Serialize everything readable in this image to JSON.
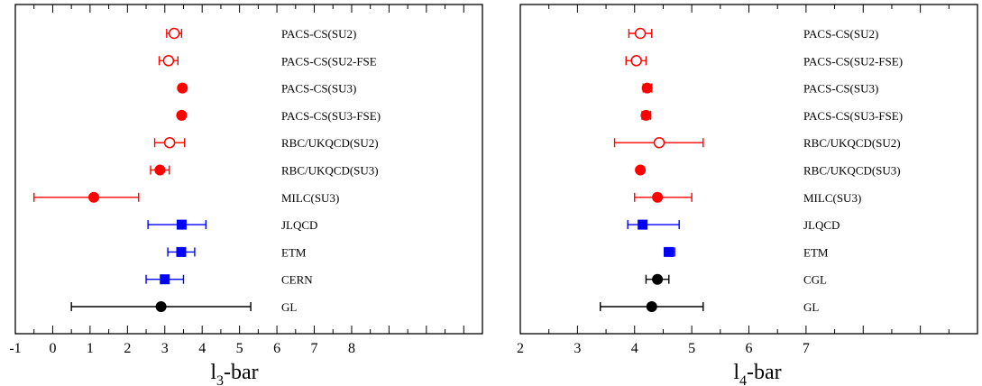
{
  "colors": {
    "red": "#ff0000",
    "blue": "#0000ff",
    "black": "#000000"
  },
  "chart_data": [
    {
      "type": "scatter",
      "chart_style": "horizontal error-bar forest plot",
      "xlabel_main": "l",
      "xlabel_sub": "3",
      "xlabel_rest": "-bar",
      "xlim": [
        -1,
        11.5
      ],
      "x_ticks": [
        -1,
        0,
        1,
        2,
        3,
        4,
        5,
        6,
        7,
        8
      ],
      "x_tick_labels": [
        "-1",
        "0",
        "1",
        "2",
        "3",
        "4",
        "5",
        "6",
        "7",
        "8"
      ],
      "grid": false,
      "rows": [
        {
          "label": "PACS-CS(SU2)",
          "value": 3.25,
          "err_low": 3.05,
          "err_high": 3.45,
          "color": "#ff0000",
          "marker": "circle-open"
        },
        {
          "label": "PACS-CS(SU2-FSE",
          "value": 3.1,
          "err_low": 2.85,
          "err_high": 3.35,
          "color": "#ff0000",
          "marker": "circle-open"
        },
        {
          "label": "PACS-CS(SU3)",
          "value": 3.47,
          "err_low": 3.4,
          "err_high": 3.55,
          "color": "#ff0000",
          "marker": "circle-filled"
        },
        {
          "label": "PACS-CS(SU3-FSE)",
          "value": 3.45,
          "err_low": 3.38,
          "err_high": 3.53,
          "color": "#ff0000",
          "marker": "circle-filled"
        },
        {
          "label": "RBC/UKQCD(SU2)",
          "value": 3.13,
          "err_low": 2.73,
          "err_high": 3.53,
          "color": "#ff0000",
          "marker": "circle-open"
        },
        {
          "label": "RBC/UKQCD(SU3)",
          "value": 2.87,
          "err_low": 2.62,
          "err_high": 3.12,
          "color": "#ff0000",
          "marker": "circle-filled"
        },
        {
          "label": "MILC(SU3)",
          "value": 1.1,
          "err_low": -0.5,
          "err_high": 2.3,
          "color": "#ff0000",
          "marker": "circle-filled"
        },
        {
          "label": "JLQCD",
          "value": 3.45,
          "err_low": 2.55,
          "err_high": 4.1,
          "color": "#0000ff",
          "marker": "square-filled"
        },
        {
          "label": "ETM",
          "value": 3.44,
          "err_low": 3.08,
          "err_high": 3.8,
          "color": "#0000ff",
          "marker": "square-filled"
        },
        {
          "label": "CERN",
          "value": 3.0,
          "err_low": 2.5,
          "err_high": 3.5,
          "color": "#0000ff",
          "marker": "square-filled"
        },
        {
          "label": "GL",
          "value": 2.9,
          "err_low": 0.5,
          "err_high": 5.3,
          "color": "#000000",
          "marker": "circle-filled"
        }
      ]
    },
    {
      "type": "scatter",
      "chart_style": "horizontal error-bar forest plot",
      "xlabel_main": "l",
      "xlabel_sub": "4",
      "xlabel_rest": "-bar",
      "xlim": [
        2,
        10
      ],
      "x_ticks": [
        2,
        3,
        4,
        5,
        6,
        7
      ],
      "x_tick_labels": [
        "2",
        "3",
        "4",
        "5",
        "6",
        "7"
      ],
      "grid": false,
      "rows": [
        {
          "label": "PACS-CS(SU2)",
          "value": 4.1,
          "err_low": 3.9,
          "err_high": 4.3,
          "color": "#ff0000",
          "marker": "circle-open"
        },
        {
          "label": "PACS-CS(SU2-FSE)",
          "value": 4.03,
          "err_low": 3.85,
          "err_high": 4.2,
          "color": "#ff0000",
          "marker": "circle-open"
        },
        {
          "label": "PACS-CS(SU3)",
          "value": 4.22,
          "err_low": 4.15,
          "err_high": 4.3,
          "color": "#ff0000",
          "marker": "circle-filled"
        },
        {
          "label": "PACS-CS(SU3-FSE)",
          "value": 4.2,
          "err_low": 4.13,
          "err_high": 4.28,
          "color": "#ff0000",
          "marker": "circle-filled"
        },
        {
          "label": "RBC/UKQCD(SU2)",
          "value": 4.43,
          "err_low": 3.65,
          "err_high": 5.2,
          "color": "#ff0000",
          "marker": "circle-open"
        },
        {
          "label": "RBC/UKQCD(SU3)",
          "value": 4.1,
          "err_low": 4.08,
          "err_high": 4.12,
          "color": "#ff0000",
          "marker": "circle-filled"
        },
        {
          "label": "MILC(SU3)",
          "value": 4.4,
          "err_low": 4.0,
          "err_high": 5.0,
          "color": "#ff0000",
          "marker": "circle-filled"
        },
        {
          "label": "JLQCD",
          "value": 4.14,
          "err_low": 3.88,
          "err_high": 4.78,
          "color": "#0000ff",
          "marker": "square-filled"
        },
        {
          "label": "ETM",
          "value": 4.6,
          "err_low": 4.52,
          "err_high": 4.7,
          "color": "#0000ff",
          "marker": "square-filled"
        },
        {
          "label": "CGL",
          "value": 4.4,
          "err_low": 4.2,
          "err_high": 4.6,
          "color": "#000000",
          "marker": "circle-filled"
        },
        {
          "label": "GL",
          "value": 4.3,
          "err_low": 3.4,
          "err_high": 5.2,
          "color": "#000000",
          "marker": "circle-filled"
        }
      ]
    }
  ]
}
